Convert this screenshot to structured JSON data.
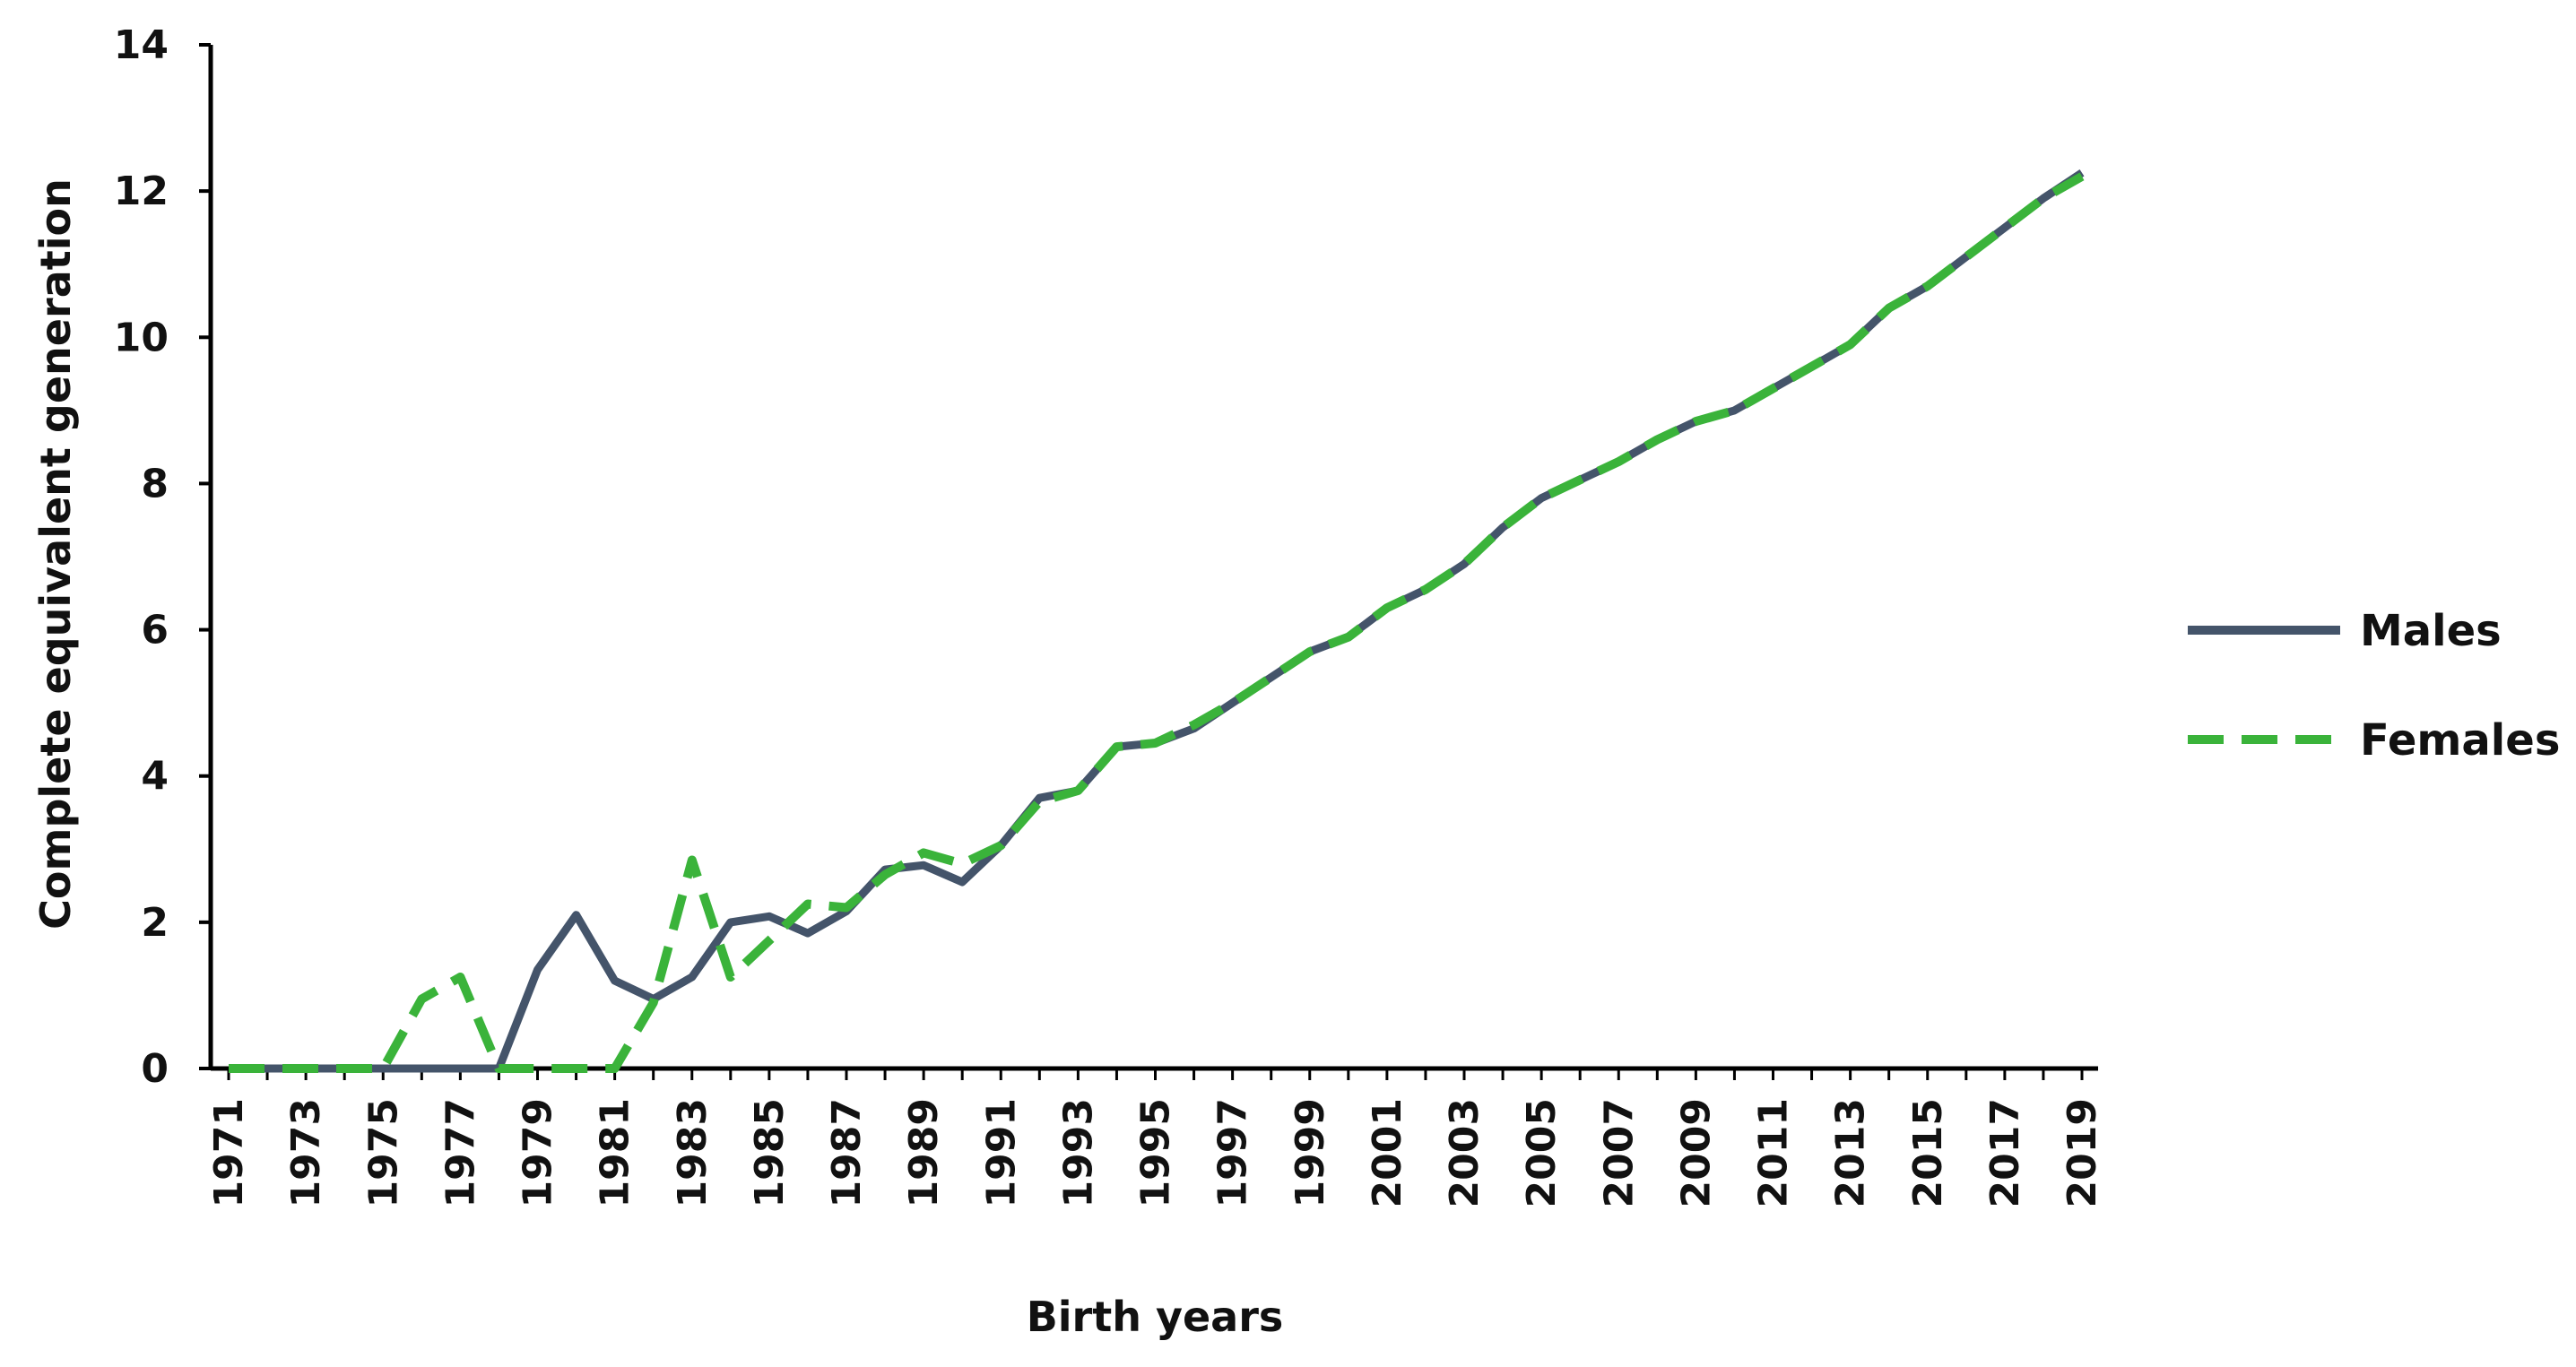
{
  "chart_data": {
    "type": "line",
    "title": "",
    "xlabel": "Birth years",
    "ylabel": "Complete equivalent generation",
    "ylim": [
      0,
      14
    ],
    "yticks": [
      0,
      2,
      4,
      6,
      8,
      10,
      12,
      14
    ],
    "xticks": [
      "1971",
      "1973",
      "1975",
      "1977",
      "1979",
      "1981",
      "1983",
      "1985",
      "1987",
      "1989",
      "1991",
      "1993",
      "1995",
      "1997",
      "1999",
      "2001",
      "2003",
      "2005",
      "2007",
      "2009",
      "2011",
      "2013",
      "2015",
      "2017",
      "2019"
    ],
    "grid": false,
    "legend_position": "right",
    "x": [
      1971,
      1972,
      1973,
      1974,
      1975,
      1976,
      1977,
      1978,
      1979,
      1980,
      1981,
      1982,
      1983,
      1984,
      1985,
      1986,
      1987,
      1988,
      1989,
      1990,
      1991,
      1992,
      1993,
      1994,
      1995,
      1996,
      1997,
      1998,
      1999,
      2000,
      2001,
      2002,
      2003,
      2004,
      2005,
      2006,
      2007,
      2008,
      2009,
      2010,
      2011,
      2012,
      2013,
      2014,
      2015,
      2016,
      2017,
      2018,
      2019
    ],
    "series": [
      {
        "name": "Males",
        "color": "#44546a",
        "style": "solid",
        "values": [
          0,
          0,
          0,
          0,
          0,
          0,
          0,
          0,
          1.35,
          2.1,
          1.2,
          0.95,
          1.25,
          2.0,
          2.08,
          1.85,
          2.15,
          2.72,
          2.78,
          2.55,
          3.05,
          3.7,
          3.8,
          4.4,
          4.45,
          4.65,
          5.0,
          5.35,
          5.7,
          5.9,
          6.3,
          6.55,
          6.9,
          7.4,
          7.8,
          8.05,
          8.3,
          8.6,
          8.85,
          9.0,
          9.3,
          9.6,
          9.9,
          10.4,
          10.7,
          11.1,
          11.5,
          11.9,
          12.25
        ]
      },
      {
        "name": "Females",
        "color": "#3ab33a",
        "style": "dashed",
        "values": [
          0,
          0,
          0,
          0,
          0,
          0.95,
          1.25,
          0,
          0,
          0,
          0,
          0.9,
          2.85,
          1.25,
          1.75,
          2.25,
          2.2,
          2.65,
          2.95,
          2.8,
          3.05,
          3.65,
          3.8,
          4.4,
          4.45,
          4.7,
          5.0,
          5.35,
          5.7,
          5.9,
          6.3,
          6.55,
          6.9,
          7.4,
          7.8,
          8.05,
          8.3,
          8.6,
          8.85,
          9.0,
          9.3,
          9.6,
          9.9,
          10.4,
          10.7,
          11.1,
          11.5,
          11.9,
          12.2
        ]
      }
    ]
  }
}
